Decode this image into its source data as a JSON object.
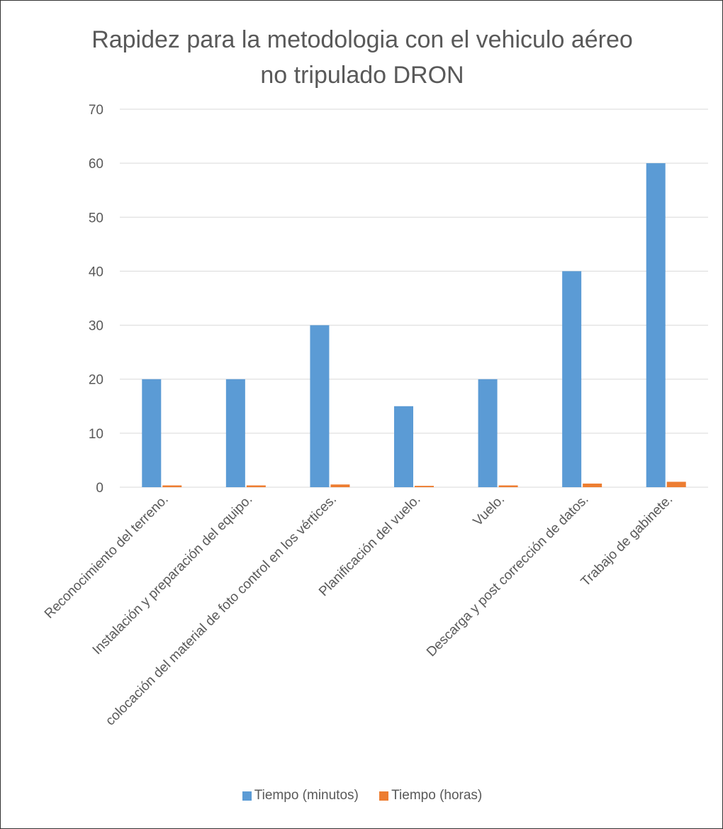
{
  "chart_data": {
    "type": "bar",
    "title_lines": [
      "Rapidez para la metodologia con el vehiculo aéreo",
      "no tripulado DRON"
    ],
    "categories": [
      "Reconocimiento del terreno.",
      "Instalación y preparación del equipo.",
      "colocación del material de foto control en los vértices.",
      "Planificación del vuelo.",
      "Vuelo.",
      "Descarga y post corrección de datos.",
      "Trabajo de gabinete."
    ],
    "series": [
      {
        "name": "Tiempo (minutos)",
        "color": "#5B9BD5",
        "values": [
          20,
          20,
          30,
          15,
          20,
          40,
          60
        ]
      },
      {
        "name": "Tiempo (horas)",
        "color": "#ED7D31",
        "values": [
          0.33,
          0.33,
          0.5,
          0.25,
          0.33,
          0.67,
          1
        ]
      }
    ],
    "ylim": [
      0,
      70
    ],
    "yticks": [
      "0",
      "10",
      "20",
      "30",
      "40",
      "50",
      "60",
      "70"
    ],
    "grid": true,
    "legend_position": "bottom",
    "xlabel": "",
    "ylabel": ""
  }
}
